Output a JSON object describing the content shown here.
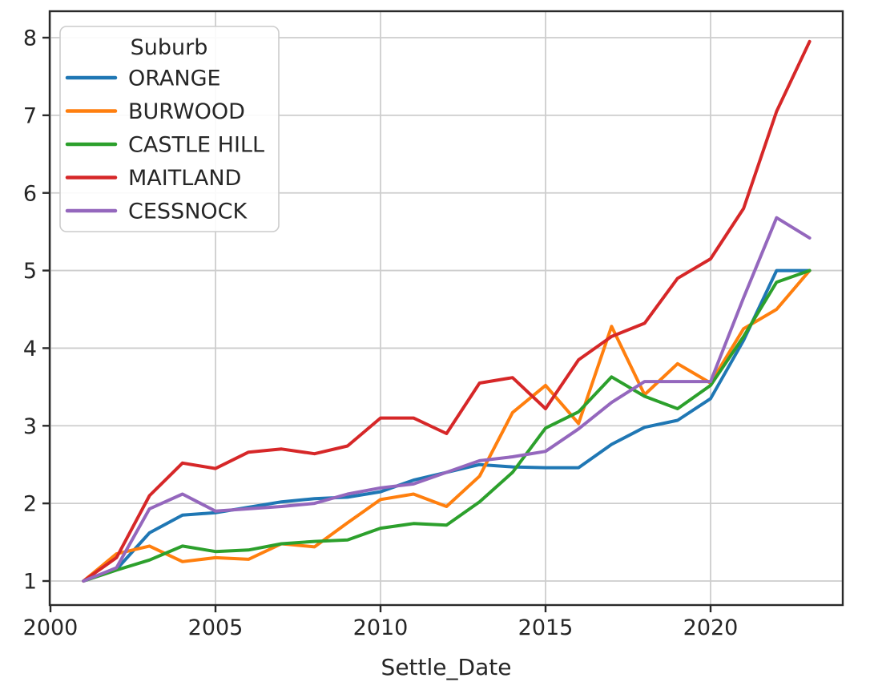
{
  "chart_data": {
    "type": "line",
    "title": "",
    "xlabel": "Settle_Date",
    "ylabel": "",
    "legend_title": "Suburb",
    "legend_position": "upper left",
    "grid": true,
    "xlim": [
      1999.98,
      2024.0
    ],
    "ylim": [
      0.69,
      8.34
    ],
    "xticks": [
      2000,
      2005,
      2010,
      2015,
      2020
    ],
    "yticks": [
      1,
      2,
      3,
      4,
      5,
      6,
      7,
      8
    ],
    "x": [
      2001,
      2002,
      2003,
      2004,
      2005,
      2006,
      2007,
      2008,
      2009,
      2010,
      2011,
      2012,
      2013,
      2014,
      2015,
      2016,
      2017,
      2018,
      2019,
      2020,
      2021,
      2022,
      2023
    ],
    "series": [
      {
        "name": "ORANGE",
        "color": "#1f77b4",
        "values": [
          1.0,
          1.15,
          1.62,
          1.85,
          1.88,
          1.95,
          2.02,
          2.06,
          2.08,
          2.15,
          2.3,
          2.4,
          2.5,
          2.47,
          2.46,
          2.46,
          2.76,
          2.98,
          3.07,
          3.35,
          4.1,
          5.0,
          5.0
        ]
      },
      {
        "name": "BURWOOD",
        "color": "#ff7f0e",
        "values": [
          1.0,
          1.35,
          1.45,
          1.25,
          1.3,
          1.28,
          1.48,
          1.44,
          1.75,
          2.05,
          2.12,
          1.96,
          2.35,
          3.17,
          3.52,
          3.03,
          4.28,
          3.4,
          3.8,
          3.55,
          4.25,
          4.5,
          5.0
        ]
      },
      {
        "name": "CASTLE HILL",
        "color": "#2ca02c",
        "values": [
          1.0,
          1.14,
          1.27,
          1.45,
          1.38,
          1.4,
          1.48,
          1.51,
          1.53,
          1.68,
          1.74,
          1.72,
          2.02,
          2.4,
          2.97,
          3.18,
          3.63,
          3.38,
          3.22,
          3.52,
          4.15,
          4.85,
          5.0
        ]
      },
      {
        "name": "MAITLAND",
        "color": "#d62728",
        "values": [
          1.0,
          1.3,
          2.1,
          2.52,
          2.45,
          2.66,
          2.7,
          2.64,
          2.74,
          3.1,
          3.1,
          2.9,
          3.55,
          3.62,
          3.22,
          3.85,
          4.15,
          4.32,
          4.9,
          5.15,
          5.8,
          7.05,
          7.95
        ]
      },
      {
        "name": "CESSNOCK",
        "color": "#9467bd",
        "values": [
          1.0,
          1.17,
          1.93,
          2.12,
          1.9,
          1.93,
          1.96,
          2.0,
          2.12,
          2.2,
          2.25,
          2.4,
          2.55,
          2.6,
          2.67,
          2.96,
          3.3,
          3.57,
          3.57,
          3.57,
          4.65,
          5.68,
          5.42
        ]
      }
    ]
  }
}
